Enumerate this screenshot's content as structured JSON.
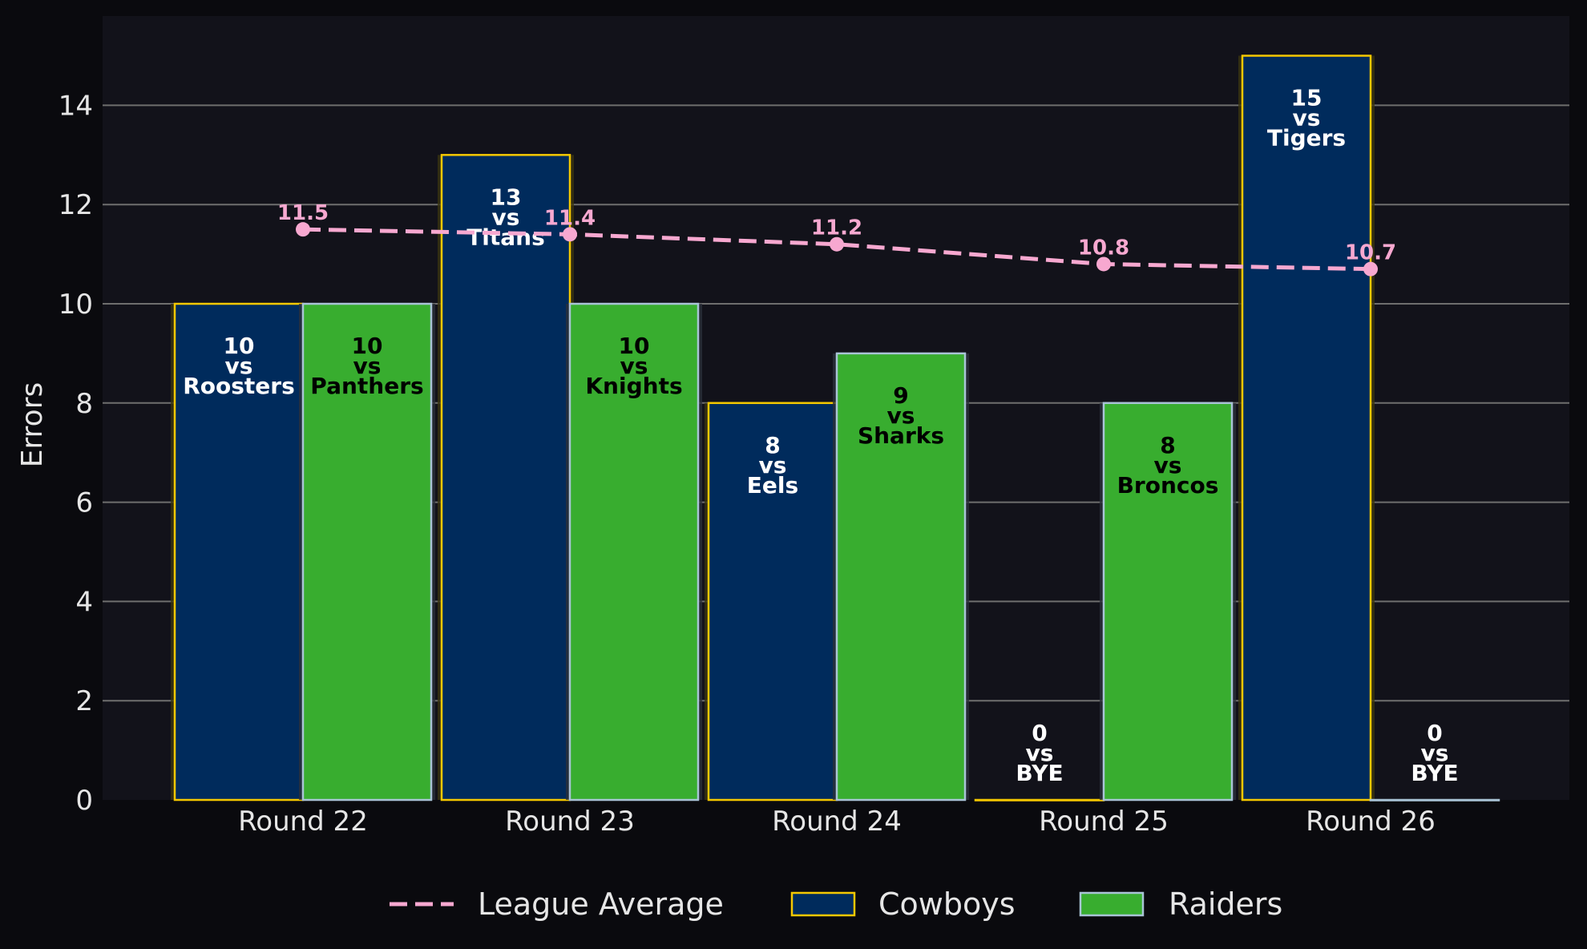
{
  "chart_data": {
    "type": "bar",
    "categories": [
      "Round 22",
      "Round 23",
      "Round 24",
      "Round 25",
      "Round 26"
    ],
    "ylabel": "Errors",
    "xlabel": "",
    "ylim": [
      0,
      15.8
    ],
    "yticks": [
      0,
      2,
      4,
      6,
      8,
      10,
      12,
      14
    ],
    "grid": "horizontal",
    "legend_placement": "bottom-center",
    "series": [
      {
        "name": "Cowboys",
        "type": "bar",
        "color": "#002b5c",
        "edge_color": "#f5c800",
        "label_color": "#ffffff",
        "values": [
          10,
          13,
          8,
          0,
          15
        ],
        "opponents": [
          "Roosters",
          "Titans",
          "Eels",
          "BYE",
          "Tigers"
        ]
      },
      {
        "name": "Raiders",
        "type": "bar",
        "color": "#38ad2f",
        "edge_color": "#a9c4d6",
        "label_color": "#000000",
        "values": [
          10,
          10,
          9,
          8,
          0
        ],
        "opponents": [
          "Panthers",
          "Knights",
          "Sharks",
          "Broncos",
          "BYE"
        ]
      },
      {
        "name": "League Average",
        "type": "line",
        "style": "dashed",
        "color": "#f7a8d0",
        "values": [
          11.5,
          11.4,
          11.2,
          10.8,
          10.7
        ],
        "value_labels": [
          "11.5",
          "11.4",
          "11.2",
          "10.8",
          "10.7"
        ]
      }
    ],
    "vs_text": "vs",
    "colors": {
      "background": "#0a0a0e",
      "plot_background": "#12121a",
      "grid": "#6e6e6e"
    }
  }
}
